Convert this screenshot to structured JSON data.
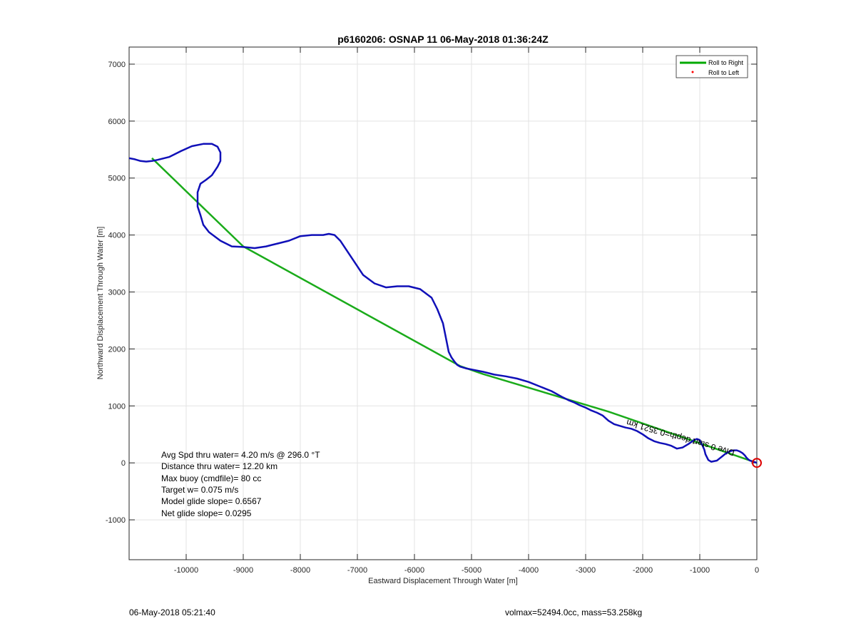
{
  "chart_data": {
    "type": "line",
    "title": "p6160206: OSNAP 11 06-May-2018 01:36:24Z",
    "xlabel": "Eastward Displacement Through Water [m]",
    "ylabel": "Northward Displacement Through Water [m]",
    "xlim": [
      -11000,
      0
    ],
    "ylim": [
      -1700,
      7300
    ],
    "xticks": [
      -10000,
      -9000,
      -8000,
      -7000,
      -6000,
      -5000,
      -4000,
      -3000,
      -2000,
      -1000,
      0
    ],
    "yticks": [
      -1000,
      0,
      1000,
      2000,
      3000,
      4000,
      5000,
      6000,
      7000
    ],
    "grid": true,
    "legend": {
      "placement": "top-right",
      "entries": [
        {
          "label": "Roll to Right",
          "color": "#00aa00",
          "style": "line"
        },
        {
          "label": "Roll to Left",
          "color": "#ff0000",
          "style": "dot"
        }
      ]
    },
    "series": [
      {
        "name": "Roll to Right",
        "color": "#1aab1a",
        "x": [
          0,
          -2600,
          -4800,
          -5200,
          -9000,
          -10600
        ],
        "y": [
          0,
          900,
          1560,
          1700,
          3800,
          5350
        ]
      },
      {
        "color": "#1010b8",
        "x": [
          0,
          -60,
          -120,
          -150,
          -180,
          -210,
          -250,
          -300,
          -350,
          -400,
          -450,
          -500,
          -550,
          -600,
          -650,
          -700,
          -800,
          -850,
          -900,
          -920,
          -950,
          -980,
          -1000,
          -1050,
          -1100,
          -1200,
          -1300,
          -1400,
          -1500,
          -1600,
          -1700,
          -1800,
          -1900,
          -2000,
          -2100,
          -2200,
          -2300,
          -2400,
          -2500,
          -2600,
          -2700,
          -2800,
          -2900,
          -3000,
          -3100,
          -3200,
          -3300,
          -3400,
          -3600,
          -3800,
          -4000,
          -4200,
          -4400,
          -4600,
          -4800,
          -5000,
          -5100,
          -5200,
          -5250,
          -5300,
          -5350,
          -5400,
          -5430,
          -5460,
          -5500,
          -5600,
          -5700,
          -5900,
          -6100,
          -6300,
          -6500,
          -6700,
          -6900,
          -7000,
          -7200,
          -7300,
          -7400,
          -7500,
          -7600,
          -7800,
          -8000,
          -8200,
          -8400,
          -8600,
          -8800,
          -9000,
          -9200,
          -9400,
          -9600,
          -9700,
          -9750,
          -9800,
          -9800,
          -9750,
          -9650,
          -9550,
          -9450,
          -9400,
          -9400,
          -9450,
          -9550,
          -9700,
          -9900,
          -10100,
          -10300,
          -10500,
          -10600,
          -10700,
          -10800,
          -10900,
          -11000
        ],
        "y": [
          0,
          20,
          40,
          60,
          90,
          130,
          170,
          200,
          220,
          220,
          210,
          190,
          160,
          120,
          80,
          40,
          20,
          50,
          150,
          230,
          300,
          350,
          400,
          420,
          400,
          330,
          270,
          250,
          300,
          330,
          350,
          380,
          430,
          500,
          560,
          600,
          620,
          650,
          680,
          740,
          830,
          880,
          920,
          970,
          1010,
          1060,
          1100,
          1150,
          1260,
          1340,
          1420,
          1480,
          1520,
          1550,
          1600,
          1640,
          1660,
          1690,
          1720,
          1780,
          1850,
          1950,
          2100,
          2250,
          2450,
          2700,
          2900,
          3050,
          3100,
          3100,
          3080,
          3150,
          3300,
          3450,
          3750,
          3900,
          4000,
          4020,
          4000,
          4000,
          3980,
          3900,
          3850,
          3800,
          3770,
          3790,
          3800,
          3900,
          4050,
          4180,
          4350,
          4500,
          4750,
          4900,
          4970,
          5050,
          5200,
          5300,
          5450,
          5550,
          5600,
          5600,
          5560,
          5470,
          5370,
          5320,
          5300,
          5290,
          5300,
          5330,
          5350
        ]
      }
    ],
    "annotations": [
      "Avg Spd thru water=  4.20 m/s @ 296.0 °T",
      "Distance thru water= 12.20 km",
      "Max buoy (cmdfile)= 80 cc",
      "Target w= 0.075 m/s",
      "Model glide slope= 0.6567",
      "Net glide slope= 0.0295"
    ],
    "rotated_text": "Dive 0 start depth=0.3521 km"
  },
  "footer": {
    "left": "06-May-2018 05:21:40",
    "right": "volmax=52494.0cc, mass=53.258kg"
  }
}
